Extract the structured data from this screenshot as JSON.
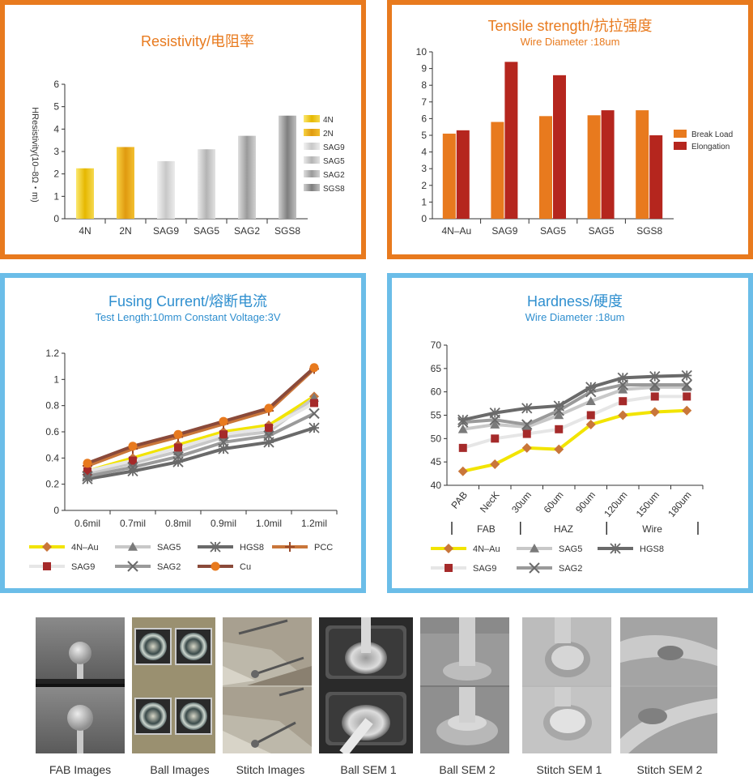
{
  "colors": {
    "orange": "#e87a1e",
    "blue": "#6bbde8",
    "orange_title": "#e87a1e",
    "blue_title": "#2f8fcf"
  },
  "resistivity": {
    "title": "Resistivity/电阻率",
    "ylabel": "HResistivity(10–8Ω・m)",
    "chart_data": {
      "type": "bar",
      "categories": [
        "4N",
        "2N",
        "SAG9",
        "SAG5",
        "SAG2",
        "SGS8"
      ],
      "values": [
        2.25,
        3.2,
        2.57,
        3.1,
        3.7,
        4.6
      ],
      "ylim": [
        0,
        6
      ],
      "yticks": [
        "0",
        "1",
        "2",
        "3",
        "4",
        "5",
        "6"
      ],
      "legend": [
        "4N",
        "2N",
        "SAG9",
        "SAG5",
        "SAG2",
        "SGS8"
      ],
      "legend_position": "right"
    }
  },
  "tensile": {
    "title": "Tensile strength/抗拉强度",
    "subtitle": "Wire Diameter :18um",
    "chart_data": {
      "type": "bar",
      "categories": [
        "4N–Au",
        "SAG9",
        "SAG5",
        "SAG5",
        "SGS8"
      ],
      "series": [
        {
          "name": "Break Load",
          "values": [
            5.1,
            5.8,
            6.15,
            6.2,
            6.5
          ],
          "color": "#e87a1e"
        },
        {
          "name": "Elongation",
          "values": [
            5.3,
            9.4,
            8.6,
            6.5,
            5.0
          ],
          "color": "#b5261e"
        }
      ],
      "ylim": [
        0,
        10
      ],
      "yticks": [
        "0",
        "1",
        "2",
        "3",
        "4",
        "5",
        "6",
        "7",
        "8",
        "9",
        "10"
      ],
      "legend_position": "right"
    }
  },
  "fusing": {
    "title": "Fusing Current/熔断电流",
    "subtitle": "Test Length:10mm   Constant Voltage:3V",
    "chart_data": {
      "type": "line",
      "x": [
        "0.6mil",
        "0.7mil",
        "0.8mil",
        "0.9mil",
        "1.0mil",
        "1.2mil"
      ],
      "ylim": [
        0,
        1.2
      ],
      "yticks": [
        "0",
        "0.2",
        "0.4",
        "0.6",
        "0.8",
        "1",
        "1.2"
      ],
      "series": [
        {
          "name": "4N–Au",
          "values": [
            0.3,
            0.4,
            0.5,
            0.6,
            0.65,
            0.87
          ],
          "color": "#f2e400",
          "marker": "diamond",
          "marker_color": "#c9763a"
        },
        {
          "name": "SAG5",
          "values": [
            0.28,
            0.36,
            0.45,
            0.56,
            0.6,
            0.86
          ],
          "color": "#c8c8c8",
          "marker": "triangle",
          "marker_color": "#7a7a7a"
        },
        {
          "name": "HGS8",
          "values": [
            0.24,
            0.3,
            0.37,
            0.47,
            0.52,
            0.63
          ],
          "color": "#6a6a6a",
          "marker": "star",
          "marker_color": "#6a6a6a"
        },
        {
          "name": "PCC",
          "values": [
            0.34,
            0.47,
            0.56,
            0.66,
            0.76,
            1.08
          ],
          "color": "#c9763a",
          "marker": "plus",
          "marker_color": "#9a4a2a"
        },
        {
          "name": "SAG9",
          "values": [
            0.3,
            0.38,
            0.48,
            0.58,
            0.63,
            0.82
          ],
          "color": "#e6e6e6",
          "marker": "square",
          "marker_color": "#a52a2a"
        },
        {
          "name": "SAG2",
          "values": [
            0.26,
            0.33,
            0.41,
            0.52,
            0.57,
            0.74
          ],
          "color": "#9a9a9a",
          "marker": "x",
          "marker_color": "#6a6a6a"
        },
        {
          "name": "Cu",
          "values": [
            0.36,
            0.49,
            0.58,
            0.68,
            0.78,
            1.09
          ],
          "color": "#8a4a3a",
          "marker": "circle",
          "marker_color": "#e87a1e"
        }
      ],
      "legend_position": "bottom"
    }
  },
  "hardness": {
    "title": "Hardness/硬度",
    "subtitle": "Wire Diameter :18um",
    "chart_data": {
      "type": "line",
      "x": [
        "PAB",
        "NecK",
        "30um",
        "60um",
        "90um",
        "120um",
        "150um",
        "180um"
      ],
      "groups": [
        "FAB",
        "HAZ",
        "Wire"
      ],
      "ylim": [
        40,
        70
      ],
      "yticks": [
        "40",
        "45",
        "50",
        "55",
        "60",
        "65",
        "70"
      ],
      "series": [
        {
          "name": "4N–Au",
          "values": [
            43,
            44.5,
            48,
            47.7,
            53,
            55,
            55.7,
            56
          ],
          "color": "#f2e400",
          "marker": "diamond",
          "marker_color": "#c9763a"
        },
        {
          "name": "SAG5",
          "values": [
            52,
            53,
            52.5,
            55,
            58,
            60.5,
            61,
            61
          ],
          "color": "#c8c8c8",
          "marker": "triangle",
          "marker_color": "#7a7a7a"
        },
        {
          "name": "HGS8",
          "values": [
            54,
            55.5,
            56.5,
            57,
            61,
            63,
            63.3,
            63.5
          ],
          "color": "#6a6a6a",
          "marker": "star",
          "marker_color": "#6a6a6a"
        },
        {
          "name": "SAG9",
          "values": [
            48,
            50,
            51,
            52,
            55,
            58,
            59,
            59
          ],
          "color": "#e6e6e6",
          "marker": "square",
          "marker_color": "#a52a2a"
        },
        {
          "name": "SAG2",
          "values": [
            53.5,
            54,
            53,
            56,
            60,
            61.5,
            61.5,
            61.5
          ],
          "color": "#9a9a9a",
          "marker": "x",
          "marker_color": "#6a6a6a"
        }
      ],
      "legend_position": "bottom"
    }
  },
  "captions": [
    "FAB Images",
    "Ball Images",
    "Stitch Images",
    "Ball SEM 1",
    "Ball SEM 2",
    "Stitch SEM 1",
    "Stitch SEM 2"
  ]
}
